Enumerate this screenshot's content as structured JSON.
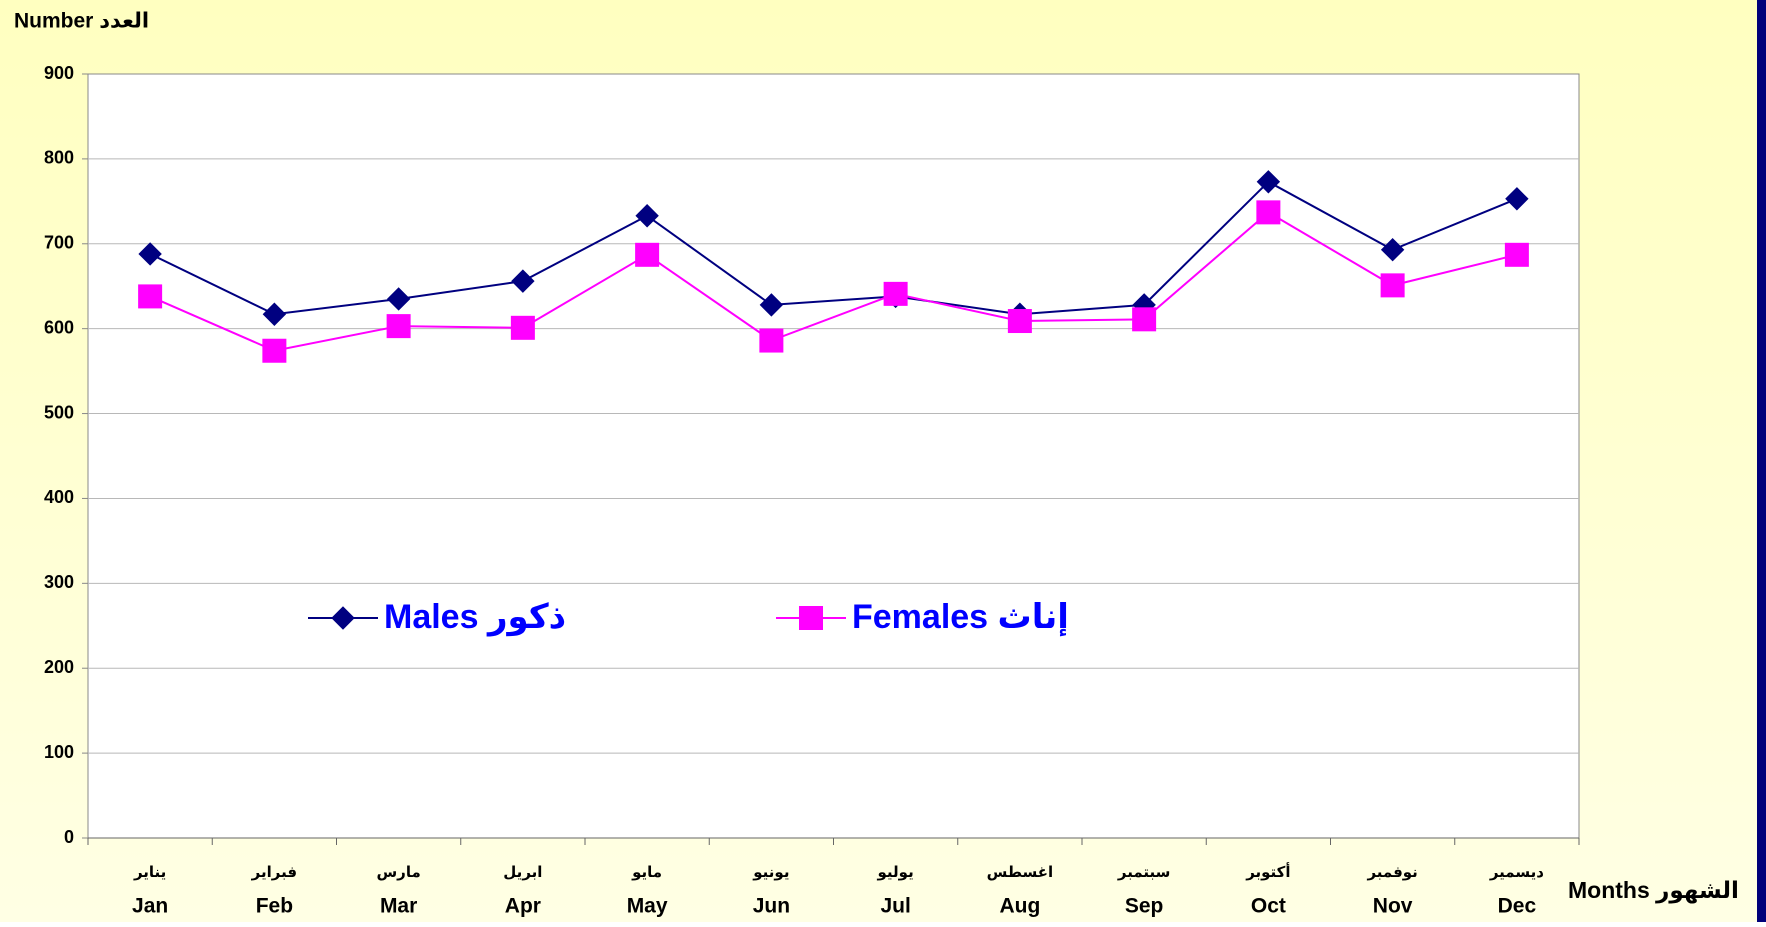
{
  "chart_data": {
    "type": "line",
    "y_label": "Number العدد",
    "x_label": "Months الشهور",
    "categories": [
      "Jan",
      "Feb",
      "Mar",
      "Apr",
      "May",
      "Jun",
      "Jul",
      "Aug",
      "Sep",
      "Oct",
      "Nov",
      "Dec"
    ],
    "categories_arabic": [
      "يناير",
      "فبراير",
      "مارس",
      "ابريل",
      "مايو",
      "يونيو",
      "يوليو",
      "اغسطس",
      "سبتمبر",
      "أكتوبر",
      "نوفمبر",
      "ديسمير"
    ],
    "series": [
      {
        "name": "Males ذكور",
        "color": "#000080",
        "marker": "diamond",
        "values": [
          688,
          617,
          635,
          656,
          733,
          628,
          638,
          617,
          628,
          773,
          693,
          753
        ]
      },
      {
        "name": "Females إناث",
        "color": "#ff00ff",
        "marker": "square",
        "values": [
          638,
          574,
          603,
          601,
          687,
          586,
          641,
          609,
          611,
          737,
          651,
          687
        ]
      }
    ],
    "ylim": [
      0,
      900
    ],
    "yticks": [
      0,
      100,
      200,
      300,
      400,
      500,
      600,
      700,
      800,
      900
    ],
    "grid": true
  }
}
